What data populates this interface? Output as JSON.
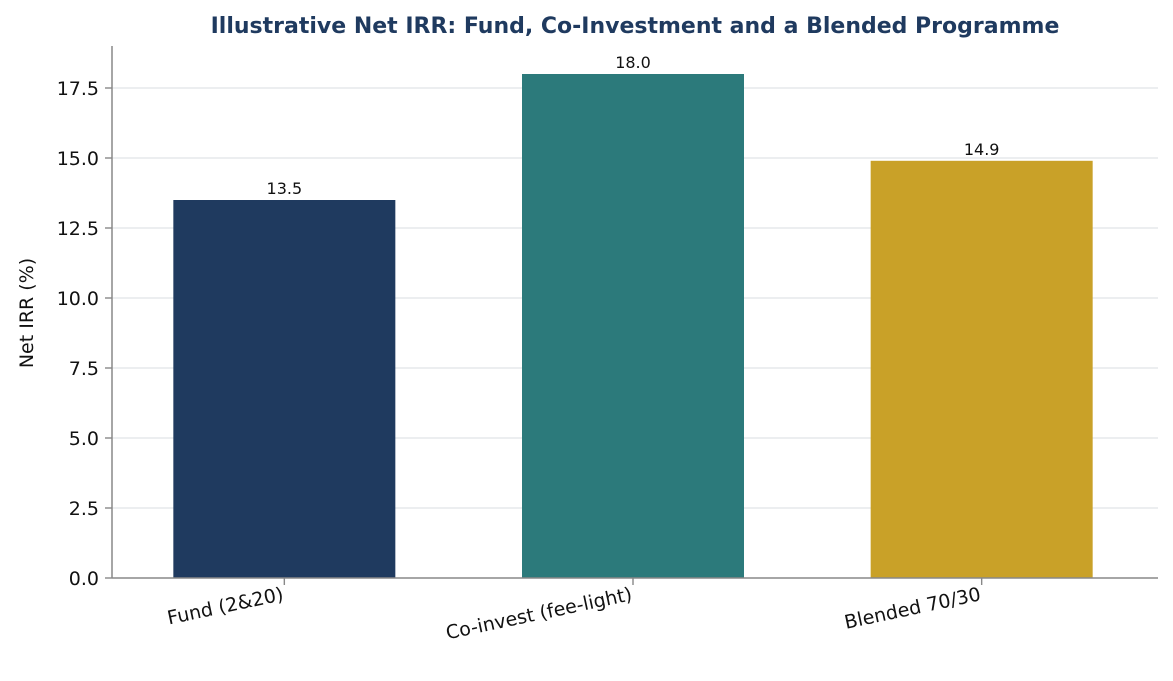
{
  "chart_data": {
    "type": "bar",
    "title": "Illustrative Net IRR: Fund, Co-Investment and a Blended Programme",
    "xlabel": "",
    "ylabel": "Net IRR (%)",
    "categories": [
      "Fund (2&20)",
      "Co-invest (fee-light)",
      "Blended 70/30"
    ],
    "values": [
      13.5,
      18.0,
      14.9
    ],
    "value_labels": [
      "13.5",
      "18.0",
      "14.9"
    ],
    "colors": [
      "#1f3a5f",
      "#2c7a7b",
      "#c9a128"
    ],
    "ylim": [
      0,
      19
    ],
    "yticks": [
      0.0,
      2.5,
      5.0,
      7.5,
      10.0,
      12.5,
      15.0,
      17.5
    ],
    "ytick_labels": [
      "0.0",
      "2.5",
      "5.0",
      "7.5",
      "10.0",
      "12.5",
      "15.0",
      "17.5"
    ],
    "grid": "y",
    "legend": "none"
  },
  "colors": {
    "title": "#1f3a5f",
    "grid": "#e6e8ec",
    "axis": "#888888",
    "text": "#111111"
  }
}
